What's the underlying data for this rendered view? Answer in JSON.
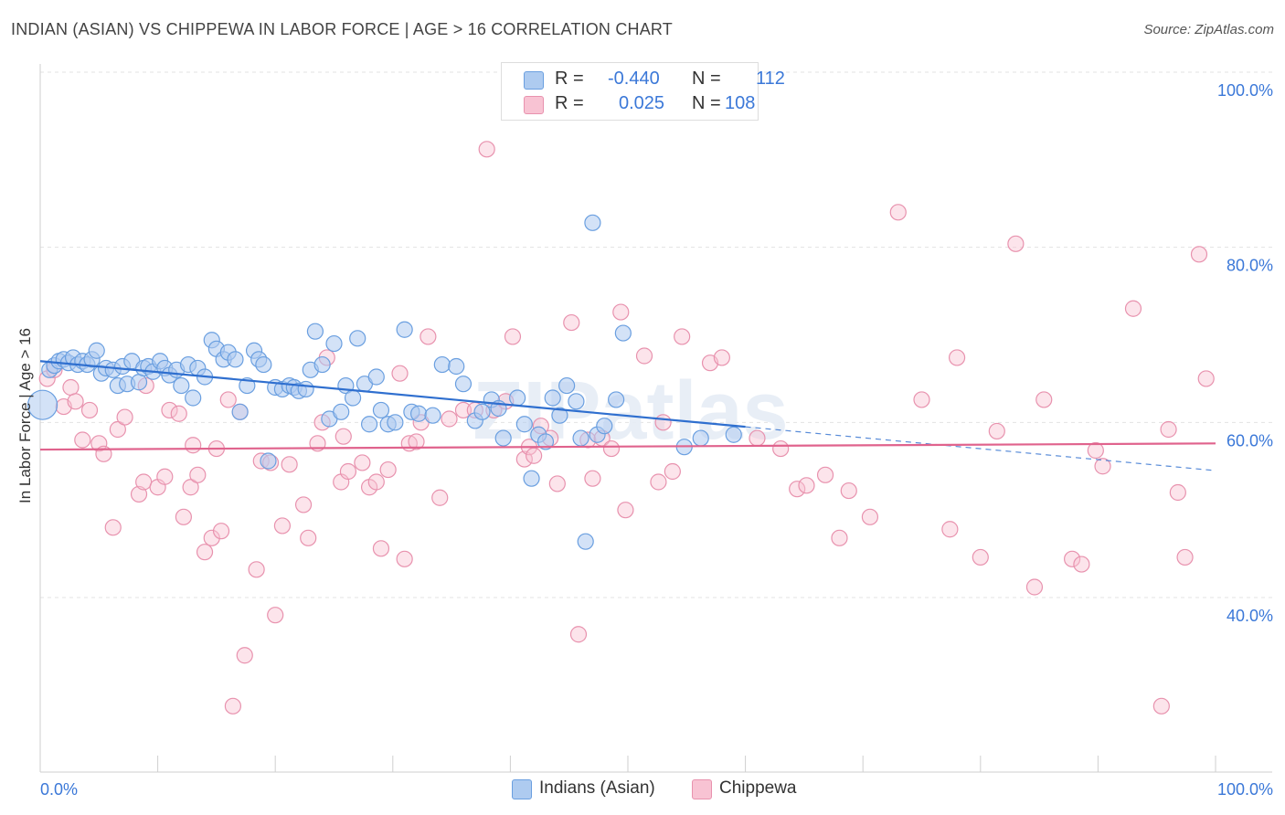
{
  "title": "INDIAN (ASIAN) VS CHIPPEWA IN LABOR FORCE | AGE > 16 CORRELATION CHART",
  "source": "Source: ZipAtlas.com",
  "watermark": "ZIPatlas",
  "legend": {
    "rows": [
      {
        "r_label": "R =",
        "r_value": "-0.440",
        "n_label": "N =",
        "n_value": "112"
      },
      {
        "r_label": "R =",
        "r_value": "0.025",
        "n_label": "N =",
        "n_value": "108"
      }
    ]
  },
  "colors": {
    "blue_fill": "#aecbf0",
    "blue_stroke": "#6a9fe0",
    "blue_line": "#2f6fcf",
    "pink_fill": "#f8c3d3",
    "pink_stroke": "#e892ae",
    "pink_line": "#e0638d",
    "axis_text": "#3b78d8",
    "grid": "#e3e3e3"
  },
  "chart_data": {
    "type": "scatter",
    "title": "INDIAN (ASIAN) VS CHIPPEWA IN LABOR FORCE | AGE > 16 CORRELATION CHART",
    "xlabel": "",
    "ylabel": "In Labor Force | Age > 16",
    "xlim": [
      0,
      100
    ],
    "ylim": [
      20,
      104
    ],
    "x_tick_labels": [
      "0.0%",
      "100.0%"
    ],
    "y_ticks": [
      40,
      60,
      80,
      100
    ],
    "y_tick_labels": [
      "40.0%",
      "60.0%",
      "80.0%",
      "100.0%"
    ],
    "grid": true,
    "legend_position": "bottom",
    "series": [
      {
        "name": "Indians (Asian)",
        "color": "#6a9fe0",
        "trend": {
          "x": [
            0,
            60
          ],
          "y": [
            67.0,
            59.5
          ],
          "dashed_to": [
            100,
            54.5
          ]
        },
        "points": [
          [
            0.2,
            62
          ],
          [
            0.8,
            66
          ],
          [
            1.2,
            66.5
          ],
          [
            1.6,
            67
          ],
          [
            2,
            67.2
          ],
          [
            2.4,
            66.8
          ],
          [
            2.8,
            67.4
          ],
          [
            3.2,
            66.6
          ],
          [
            3.6,
            67
          ],
          [
            4,
            66.6
          ],
          [
            4.4,
            67.2
          ],
          [
            4.8,
            68.2
          ],
          [
            5.2,
            65.6
          ],
          [
            5.6,
            66.2
          ],
          [
            6.2,
            66
          ],
          [
            6.6,
            64.2
          ],
          [
            7,
            66.4
          ],
          [
            7.4,
            64.4
          ],
          [
            7.8,
            67
          ],
          [
            8.4,
            64.6
          ],
          [
            8.8,
            66.2
          ],
          [
            9.2,
            66.4
          ],
          [
            9.6,
            65.8
          ],
          [
            10.2,
            67
          ],
          [
            10.6,
            66.2
          ],
          [
            11,
            65.4
          ],
          [
            11.6,
            66
          ],
          [
            12,
            64.2
          ],
          [
            12.6,
            66.6
          ],
          [
            13,
            62.8
          ],
          [
            13.4,
            66.2
          ],
          [
            14,
            65.2
          ],
          [
            14.6,
            69.4
          ],
          [
            15,
            68.4
          ],
          [
            15.6,
            67.2
          ],
          [
            16,
            68
          ],
          [
            16.6,
            67.2
          ],
          [
            17,
            61.2
          ],
          [
            17.6,
            64.2
          ],
          [
            18.2,
            68.2
          ],
          [
            18.6,
            67.2
          ],
          [
            19,
            66.6
          ],
          [
            19.4,
            55.6
          ],
          [
            20,
            64
          ],
          [
            20.6,
            63.8
          ],
          [
            21.2,
            64.2
          ],
          [
            21.6,
            64
          ],
          [
            22,
            63.6
          ],
          [
            22.6,
            63.8
          ],
          [
            23,
            66
          ],
          [
            23.4,
            70.4
          ],
          [
            24,
            66.6
          ],
          [
            24.6,
            60.4
          ],
          [
            25,
            69
          ],
          [
            25.6,
            61.2
          ],
          [
            26,
            64.2
          ],
          [
            26.6,
            62.8
          ],
          [
            27,
            69.6
          ],
          [
            27.6,
            64.4
          ],
          [
            28,
            59.8
          ],
          [
            28.6,
            65.2
          ],
          [
            29,
            61.4
          ],
          [
            29.6,
            59.8
          ],
          [
            30.2,
            60
          ],
          [
            31,
            70.6
          ],
          [
            31.6,
            61.2
          ],
          [
            32.2,
            61
          ],
          [
            33.4,
            60.8
          ],
          [
            34.2,
            66.6
          ],
          [
            35.4,
            66.4
          ],
          [
            36,
            64.4
          ],
          [
            37,
            60.2
          ],
          [
            37.6,
            61.2
          ],
          [
            38.4,
            62.6
          ],
          [
            39,
            61.6
          ],
          [
            39.4,
            58.2
          ],
          [
            40.6,
            62.8
          ],
          [
            41.2,
            59.8
          ],
          [
            41.8,
            53.6
          ],
          [
            42.4,
            58.6
          ],
          [
            43,
            57.8
          ],
          [
            43.6,
            62.8
          ],
          [
            44.2,
            60.8
          ],
          [
            44.8,
            64.2
          ],
          [
            45.6,
            62.4
          ],
          [
            46,
            58.2
          ],
          [
            46.4,
            46.4
          ],
          [
            47,
            82.8
          ],
          [
            47.4,
            58.6
          ],
          [
            48,
            59.6
          ],
          [
            49,
            62.6
          ],
          [
            49.6,
            70.2
          ],
          [
            54.8,
            57.2
          ],
          [
            56.2,
            58.2
          ],
          [
            59,
            58.6
          ]
        ]
      },
      {
        "name": "Chippewa",
        "color": "#e892ae",
        "trend": {
          "x": [
            0,
            100
          ],
          "y": [
            56.9,
            57.6
          ]
        },
        "points": [
          [
            0.6,
            65
          ],
          [
            1.2,
            66
          ],
          [
            2,
            61.8
          ],
          [
            2.6,
            64
          ],
          [
            3,
            62.4
          ],
          [
            3.6,
            58
          ],
          [
            4.2,
            61.4
          ],
          [
            5,
            57.6
          ],
          [
            5.4,
            56.4
          ],
          [
            6.2,
            48
          ],
          [
            6.6,
            59.2
          ],
          [
            7.2,
            60.6
          ],
          [
            8.4,
            51.8
          ],
          [
            8.8,
            53.2
          ],
          [
            9,
            64.2
          ],
          [
            10,
            52.6
          ],
          [
            10.6,
            53.8
          ],
          [
            11,
            61.4
          ],
          [
            11.8,
            61
          ],
          [
            12.2,
            49.2
          ],
          [
            12.8,
            52.6
          ],
          [
            13,
            57.4
          ],
          [
            13.4,
            54
          ],
          [
            14,
            45.2
          ],
          [
            14.6,
            46.8
          ],
          [
            15,
            57
          ],
          [
            15.4,
            47.6
          ],
          [
            16,
            62.6
          ],
          [
            16.4,
            27.6
          ],
          [
            17,
            61.2
          ],
          [
            17.4,
            33.4
          ],
          [
            18.4,
            43.2
          ],
          [
            18.8,
            55.6
          ],
          [
            19.6,
            55.4
          ],
          [
            20,
            38
          ],
          [
            20.6,
            48.2
          ],
          [
            21.2,
            55.2
          ],
          [
            22.4,
            50.6
          ],
          [
            22.8,
            46.8
          ],
          [
            23.6,
            57.6
          ],
          [
            24,
            60
          ],
          [
            24.4,
            67.4
          ],
          [
            25.6,
            53.2
          ],
          [
            25.8,
            58.4
          ],
          [
            26.2,
            54.4
          ],
          [
            27.4,
            55.4
          ],
          [
            28,
            52.6
          ],
          [
            28.6,
            53.2
          ],
          [
            29,
            45.6
          ],
          [
            29.6,
            54.6
          ],
          [
            30.6,
            65.6
          ],
          [
            31,
            44.4
          ],
          [
            31.4,
            57.6
          ],
          [
            32,
            57.8
          ],
          [
            32.4,
            60
          ],
          [
            33,
            69.8
          ],
          [
            34,
            51.4
          ],
          [
            34.8,
            60.4
          ],
          [
            36,
            61.4
          ],
          [
            37,
            61.4
          ],
          [
            38,
            91.2
          ],
          [
            38.6,
            61.4
          ],
          [
            39.6,
            62.4
          ],
          [
            40.2,
            69.8
          ],
          [
            41.2,
            55.8
          ],
          [
            41.6,
            57.2
          ],
          [
            42,
            56.2
          ],
          [
            42.6,
            59.6
          ],
          [
            43.4,
            58.2
          ],
          [
            44,
            53
          ],
          [
            45.2,
            71.4
          ],
          [
            45.8,
            35.8
          ],
          [
            46.6,
            58
          ],
          [
            47,
            53.6
          ],
          [
            47.8,
            58.2
          ],
          [
            48.6,
            57
          ],
          [
            49.4,
            72.6
          ],
          [
            49.8,
            50
          ],
          [
            51.4,
            67.6
          ],
          [
            52.6,
            53.2
          ],
          [
            53,
            60
          ],
          [
            53.8,
            54.4
          ],
          [
            54.6,
            69.8
          ],
          [
            57,
            66.8
          ],
          [
            58,
            67.4
          ],
          [
            61,
            58.2
          ],
          [
            63,
            57
          ],
          [
            64.4,
            52.4
          ],
          [
            65.2,
            52.8
          ],
          [
            66.8,
            54
          ],
          [
            68,
            46.8
          ],
          [
            68.8,
            52.2
          ],
          [
            70.6,
            49.2
          ],
          [
            73,
            84
          ],
          [
            75,
            62.6
          ],
          [
            77.4,
            47.8
          ],
          [
            78,
            67.4
          ],
          [
            80,
            44.6
          ],
          [
            81.4,
            59
          ],
          [
            83,
            80.4
          ],
          [
            84.6,
            41.2
          ],
          [
            85.4,
            62.6
          ],
          [
            87.8,
            44.4
          ],
          [
            88.6,
            43.8
          ],
          [
            89.8,
            56.8
          ],
          [
            90.4,
            55
          ],
          [
            93,
            73
          ],
          [
            95.4,
            27.6
          ],
          [
            96,
            59.2
          ],
          [
            96.8,
            52
          ],
          [
            97.4,
            44.6
          ],
          [
            98.6,
            79.2
          ],
          [
            99.2,
            65
          ]
        ]
      }
    ]
  },
  "bottom_legend": [
    {
      "name": "Indians (Asian)"
    },
    {
      "name": "Chippewa"
    }
  ]
}
